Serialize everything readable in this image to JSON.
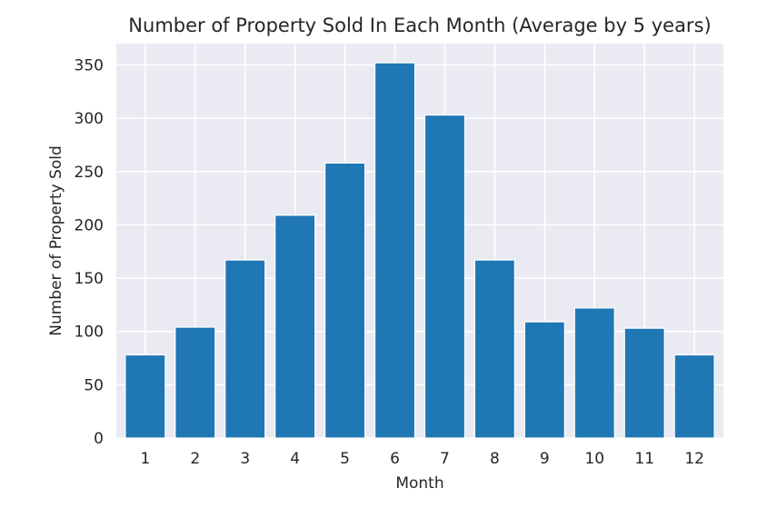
{
  "chart_data": {
    "type": "bar",
    "title": "Number of Property Sold In Each Month (Average by 5 years)",
    "xlabel": "Month",
    "ylabel": "Number of Property Sold",
    "categories": [
      "1",
      "2",
      "3",
      "4",
      "5",
      "6",
      "7",
      "8",
      "9",
      "10",
      "11",
      "12"
    ],
    "values": [
      78,
      104,
      167,
      209,
      258,
      352,
      303,
      167,
      109,
      122,
      103,
      78
    ],
    "ylim": [
      0,
      370
    ],
    "yticks": [
      "0",
      "50",
      "100",
      "150",
      "200",
      "250",
      "300",
      "350"
    ],
    "grid": true,
    "colors": {
      "bar": "#1f77b4",
      "background": "#eaeaf2",
      "grid": "#ffffff"
    }
  }
}
